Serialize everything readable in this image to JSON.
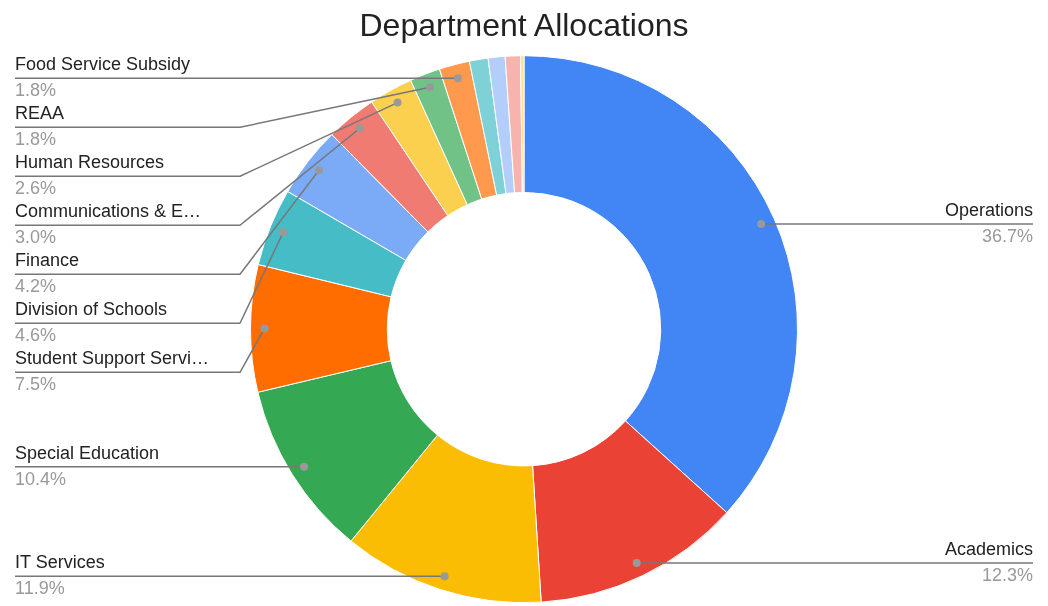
{
  "chart_data": {
    "type": "donut",
    "title": "Department Allocations",
    "categories": [
      "Operations",
      "Academics",
      "IT Services",
      "Special Education",
      "Student Support Servi…",
      "Division of Schools",
      "Finance",
      "Communications & E…",
      "Human Resources",
      "REAA",
      "Food Service Subsidy",
      null,
      null,
      null,
      null
    ],
    "values": [
      36.7,
      12.3,
      11.9,
      10.4,
      7.5,
      4.6,
      4.2,
      3.0,
      2.6,
      1.8,
      1.8,
      1.1,
      1.0,
      0.9,
      0.2
    ],
    "value_labels": [
      "36.7%",
      "12.3%",
      "11.9%",
      "10.4%",
      "7.5%",
      "4.6%",
      "4.2%",
      "3.0%",
      "2.6%",
      "1.8%",
      "1.8%",
      null,
      null,
      null,
      null
    ],
    "colors": [
      "#4285f4",
      "#ea4335",
      "#fbbc04",
      "#34a853",
      "#ff6d01",
      "#46bdc6",
      "#7baaf7",
      "#f07b72",
      "#fcd04f",
      "#71c287",
      "#ff994d",
      "#7ed1d7",
      "#b3cefb",
      "#f7b4ae",
      "#ffe08a"
    ],
    "legend": false
  }
}
